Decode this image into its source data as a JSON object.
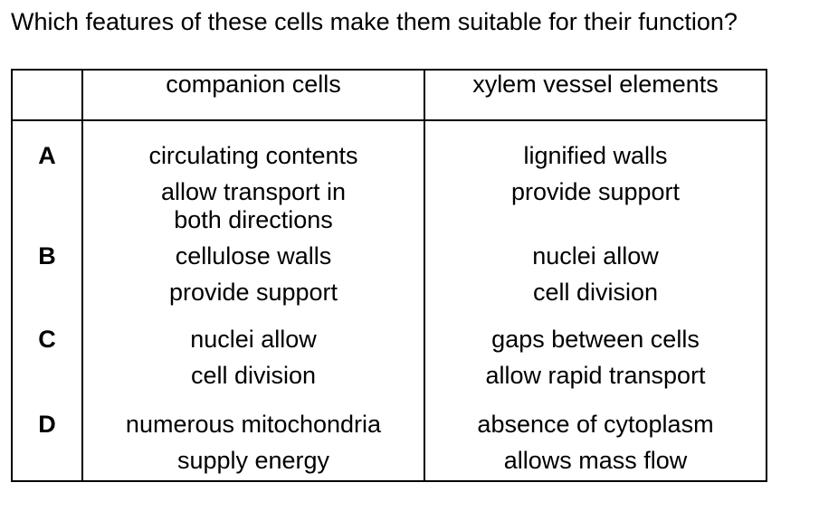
{
  "question": "Which features of these cells make them suitable for their function?",
  "table": {
    "headers": [
      "",
      "companion cells",
      "xylem vessel elements"
    ],
    "rows": [
      {
        "letter": "A",
        "companion": [
          "circulating contents",
          "allow transport in",
          "both directions"
        ],
        "xylem": [
          "lignified walls",
          "provide support"
        ]
      },
      {
        "letter": "B",
        "companion": [
          "cellulose walls",
          "provide support"
        ],
        "xylem": [
          "nuclei allow",
          "cell division"
        ]
      },
      {
        "letter": "C",
        "companion": [
          "nuclei allow",
          "cell division"
        ],
        "xylem": [
          "gaps between cells",
          "allow rapid transport"
        ]
      },
      {
        "letter": "D",
        "companion": [
          "numerous mitochondria",
          "supply energy"
        ],
        "xylem": [
          "absence of cytoplasm",
          "allows mass flow"
        ]
      }
    ]
  }
}
